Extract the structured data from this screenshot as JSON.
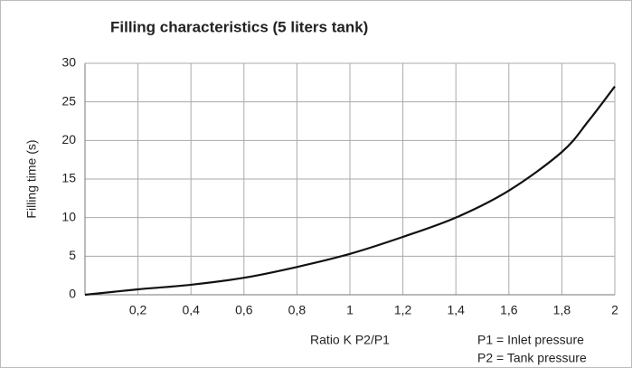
{
  "chart_data": {
    "type": "line",
    "title": "Filling characteristics (5 liters tank)",
    "x_label": "Ratio K P2/P1",
    "y_label": "Filling time  (s)",
    "annotations": [
      "P1 = Inlet pressure",
      "P2 = Tank pressure"
    ],
    "x": [
      0,
      0.2,
      0.4,
      0.6,
      0.8,
      1.0,
      1.2,
      1.4,
      1.6,
      1.8,
      1.9,
      2.0
    ],
    "series": [
      {
        "name": "Filling time",
        "color": "#111111",
        "values": [
          0,
          0.7,
          1.3,
          2.2,
          3.6,
          5.3,
          7.5,
          10,
          13.5,
          18.5,
          22.5,
          27
        ]
      }
    ],
    "xlim": [
      0,
      2
    ],
    "xticks": [
      {
        "value": 0.2,
        "label": "0,2"
      },
      {
        "value": 0.4,
        "label": "0,4"
      },
      {
        "value": 0.6,
        "label": "0,6"
      },
      {
        "value": 0.8,
        "label": "0,8"
      },
      1,
      {
        "value": 1.2,
        "label": "1,2"
      },
      {
        "value": 1.4,
        "label": "1,4"
      },
      {
        "value": 1.6,
        "label": "1,6"
      },
      {
        "value": 1.8,
        "label": "1,8"
      },
      2
    ],
    "ylim": [
      0,
      30
    ],
    "yticks": [
      0,
      5,
      10,
      15,
      20,
      25,
      30
    ],
    "grid": true
  }
}
